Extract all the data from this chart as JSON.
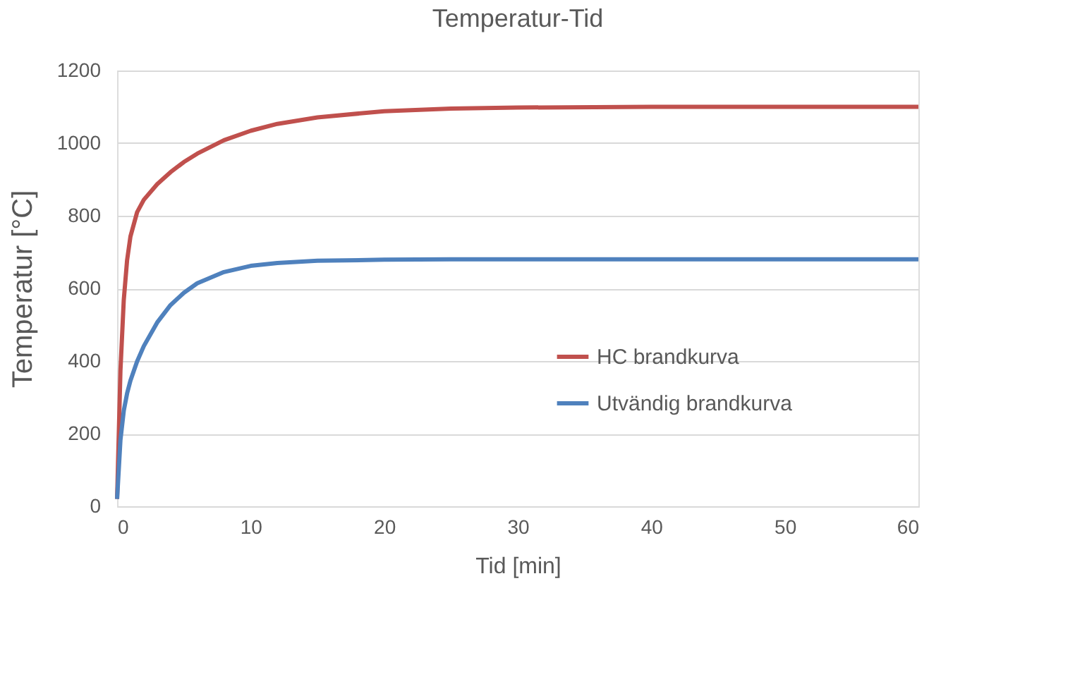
{
  "chart_data": {
    "type": "line",
    "title": "Temperatur-Tid",
    "xlabel": "Tid [min]",
    "ylabel": "Temperatur [°C]",
    "xlim": [
      0,
      60
    ],
    "xticks": [
      0,
      10,
      20,
      30,
      40,
      50,
      60
    ],
    "ylim": [
      0,
      1200
    ],
    "yticks": [
      0,
      200,
      400,
      600,
      800,
      1000,
      1200
    ],
    "grid": "y",
    "legend": "right",
    "marker": "none",
    "line_style": "solid",
    "series": [
      {
        "name": "HC brandkurva",
        "color": "#c0504d",
        "x": [
          0,
          0.25,
          0.5,
          0.75,
          1,
          1.5,
          2,
          3,
          4,
          5,
          6,
          8,
          10,
          12,
          15,
          20,
          25,
          30,
          40,
          50,
          60
        ],
        "values": [
          20,
          373,
          568,
          678,
          743,
          810,
          844,
          887,
          920,
          948,
          971,
          1008,
          1034,
          1053,
          1071,
          1088,
          1095,
          1098,
          1100,
          1100,
          1100
        ]
      },
      {
        "name": "Utvändig brandkurva",
        "color": "#4f81bd",
        "x": [
          0,
          0.25,
          0.5,
          0.75,
          1,
          1.5,
          2,
          3,
          4,
          5,
          6,
          8,
          10,
          12,
          15,
          20,
          25,
          30,
          40,
          50,
          60
        ],
        "values": [
          20,
          182,
          263,
          311,
          346,
          399,
          441,
          506,
          554,
          588,
          614,
          645,
          662,
          670,
          676,
          679,
          680,
          680,
          680,
          680,
          680
        ]
      }
    ]
  }
}
